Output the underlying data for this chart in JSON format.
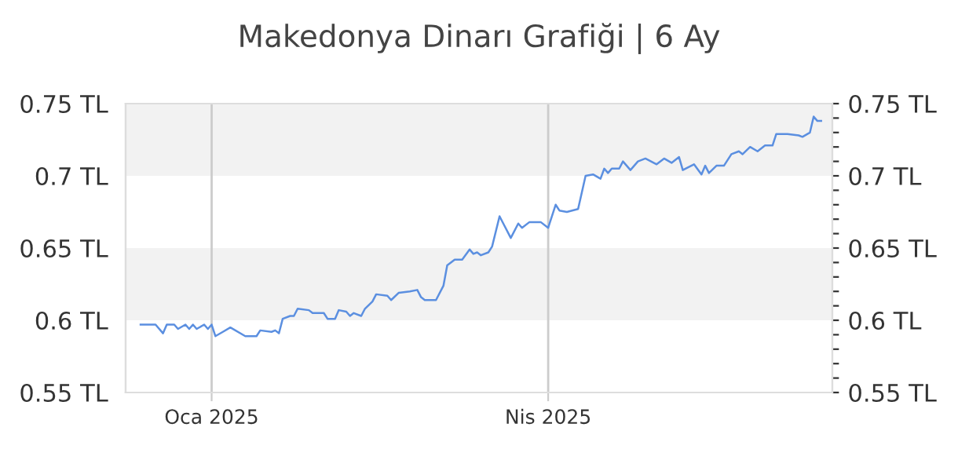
{
  "chart_data": {
    "type": "line",
    "title": "Makedonya Dinarı Grafiği | 6 Ay",
    "x": [
      "2024-12-13",
      "2024-12-17",
      "2024-12-19",
      "2024-12-20",
      "2024-12-22",
      "2024-12-23",
      "2024-12-25",
      "2024-12-26",
      "2024-12-27",
      "2024-12-28",
      "2024-12-30",
      "2024-12-31",
      "2025-01-01",
      "2025-01-02",
      "2025-01-04",
      "2025-01-06",
      "2025-01-10",
      "2025-01-13",
      "2025-01-14",
      "2025-01-17",
      "2025-01-18",
      "2025-01-19",
      "2025-01-20",
      "2025-01-22",
      "2025-01-23",
      "2025-01-24",
      "2025-01-27",
      "2025-01-28",
      "2025-01-31",
      "2025-02-01",
      "2025-02-03",
      "2025-02-04",
      "2025-02-06",
      "2025-02-07",
      "2025-02-08",
      "2025-02-10",
      "2025-02-11",
      "2025-02-13",
      "2025-02-14",
      "2025-02-17",
      "2025-02-18",
      "2025-02-20",
      "2025-02-23",
      "2025-02-25",
      "2025-02-26",
      "2025-02-27",
      "2025-03-02",
      "2025-03-04",
      "2025-03-05",
      "2025-03-07",
      "2025-03-09",
      "2025-03-11",
      "2025-03-12",
      "2025-03-13",
      "2025-03-14",
      "2025-03-16",
      "2025-03-17",
      "2025-03-19",
      "2025-03-20",
      "2025-03-22",
      "2025-03-24",
      "2025-03-25",
      "2025-03-27",
      "2025-03-30",
      "2025-04-01",
      "2025-04-03",
      "2025-04-04",
      "2025-04-06",
      "2025-04-09",
      "2025-04-11",
      "2025-04-13",
      "2025-04-15",
      "2025-04-16",
      "2025-04-17",
      "2025-04-18",
      "2025-04-20",
      "2025-04-21",
      "2025-04-23",
      "2025-04-25",
      "2025-04-27",
      "2025-04-30",
      "2025-05-02",
      "2025-05-04",
      "2025-05-06",
      "2025-05-07",
      "2025-05-10",
      "2025-05-12",
      "2025-05-13",
      "2025-05-14",
      "2025-05-16",
      "2025-05-18",
      "2025-05-20",
      "2025-05-22",
      "2025-05-23",
      "2025-05-25",
      "2025-05-27",
      "2025-05-29",
      "2025-05-31",
      "2025-06-01",
      "2025-06-04",
      "2025-06-07",
      "2025-06-08",
      "2025-06-10",
      "2025-06-11",
      "2025-06-12",
      "2025-06-13"
    ],
    "series": [
      {
        "color": "#5b8fe0",
        "values": [
          0.597,
          0.597,
          0.591,
          0.597,
          0.597,
          0.594,
          0.597,
          0.594,
          0.597,
          0.594,
          0.597,
          0.594,
          0.597,
          0.589,
          0.592,
          0.595,
          0.589,
          0.589,
          0.593,
          0.592,
          0.593,
          0.591,
          0.601,
          0.603,
          0.603,
          0.608,
          0.607,
          0.605,
          0.605,
          0.601,
          0.601,
          0.607,
          0.606,
          0.603,
          0.605,
          0.603,
          0.608,
          0.613,
          0.618,
          0.617,
          0.614,
          0.619,
          0.62,
          0.621,
          0.616,
          0.614,
          0.614,
          0.624,
          0.638,
          0.642,
          0.642,
          0.649,
          0.646,
          0.647,
          0.645,
          0.647,
          0.651,
          0.672,
          0.667,
          0.657,
          0.667,
          0.664,
          0.668,
          0.668,
          0.664,
          0.68,
          0.676,
          0.675,
          0.677,
          0.7,
          0.701,
          0.698,
          0.705,
          0.702,
          0.705,
          0.705,
          0.71,
          0.704,
          0.71,
          0.712,
          0.708,
          0.712,
          0.709,
          0.713,
          0.704,
          0.708,
          0.701,
          0.707,
          0.702,
          0.707,
          0.707,
          0.715,
          0.717,
          0.715,
          0.72,
          0.717,
          0.721,
          0.721,
          0.729,
          0.729,
          0.728,
          0.727,
          0.73,
          0.741,
          0.738,
          0.738
        ]
      }
    ],
    "xlim": [
      "2024-12-09",
      "2025-06-16"
    ],
    "xticks": [
      {
        "value": "2025-01-01",
        "label": "Oca 2025"
      },
      {
        "value": "2025-04-01",
        "label": "Nis 2025"
      }
    ],
    "ylim": [
      0.55,
      0.75
    ],
    "yticks": [
      {
        "value": 0.55,
        "label": "0.55 TL"
      },
      {
        "value": 0.6,
        "label": "0.6 TL"
      },
      {
        "value": 0.65,
        "label": "0.65 TL"
      },
      {
        "value": 0.7,
        "label": "0.7 TL"
      },
      {
        "value": 0.75,
        "label": "0.75 TL"
      }
    ],
    "y2lim": [
      0.55,
      0.75
    ],
    "y2ticks": [
      {
        "value": 0.55,
        "label": "0.55 TL"
      },
      {
        "value": 0.56,
        "label": null
      },
      {
        "value": 0.57,
        "label": null
      },
      {
        "value": 0.58,
        "label": null
      },
      {
        "value": 0.59,
        "label": null
      },
      {
        "value": 0.6,
        "label": "0.6 TL"
      },
      {
        "value": 0.61,
        "label": null
      },
      {
        "value": 0.62,
        "label": null
      },
      {
        "value": 0.63,
        "label": null
      },
      {
        "value": 0.64,
        "label": null
      },
      {
        "value": 0.65,
        "label": "0.65 TL"
      },
      {
        "value": 0.66,
        "label": null
      },
      {
        "value": 0.67,
        "label": null
      },
      {
        "value": 0.68,
        "label": null
      },
      {
        "value": 0.69,
        "label": null
      },
      {
        "value": 0.7,
        "label": "0.7 TL"
      },
      {
        "value": 0.71,
        "label": null
      },
      {
        "value": 0.72,
        "label": null
      },
      {
        "value": 0.73,
        "label": null
      },
      {
        "value": 0.74,
        "label": null
      },
      {
        "value": 0.75,
        "label": "0.75 TL"
      }
    ],
    "bands": [
      {
        "axis": "y",
        "from": 0.6,
        "to": 0.65,
        "color": "#f2f2f2"
      },
      {
        "axis": "y",
        "from": 0.7,
        "to": 0.75,
        "color": "#f2f2f2"
      }
    ],
    "grid": "x",
    "legend": false,
    "marker": "none",
    "line_style": "solid"
  }
}
